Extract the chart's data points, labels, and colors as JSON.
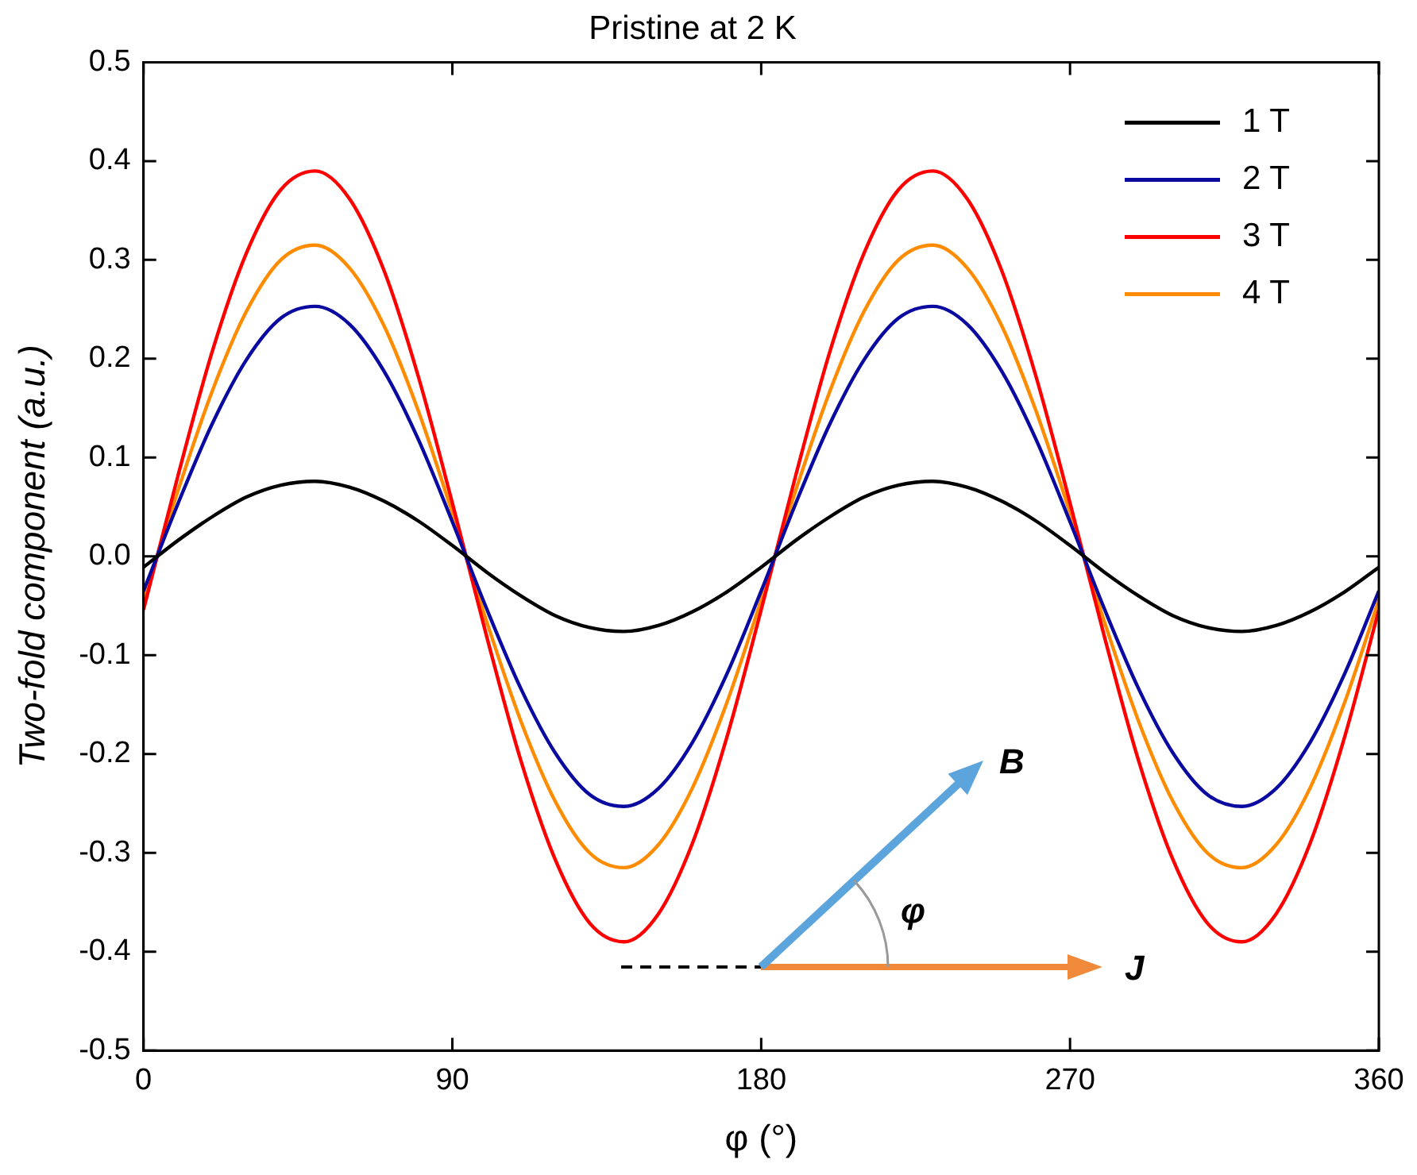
{
  "chart_data": {
    "type": "line",
    "title": "Pristine at 2 K",
    "xlabel": "φ (°)",
    "ylabel": "Two-fold component (a.u.)",
    "x": [
      0,
      10,
      20,
      30,
      40,
      50,
      60,
      70,
      80,
      90,
      100,
      110,
      120,
      130,
      140,
      150,
      160,
      170,
      180,
      190,
      200,
      210,
      220,
      230,
      240,
      250,
      260,
      270,
      280,
      290,
      300,
      310,
      320,
      330,
      340,
      350,
      360
    ],
    "series": [
      {
        "name": "1 T",
        "color": "#000000",
        "values": [
          -0.011,
          0.016,
          0.04,
          0.06,
          0.072,
          0.076,
          0.07,
          0.056,
          0.036,
          0.011,
          -0.016,
          -0.04,
          -0.06,
          -0.072,
          -0.076,
          -0.07,
          -0.056,
          -0.036,
          -0.011,
          0.016,
          0.04,
          0.06,
          0.072,
          0.076,
          0.07,
          0.056,
          0.036,
          0.011,
          -0.016,
          -0.04,
          -0.06,
          -0.072,
          -0.076,
          -0.07,
          -0.056,
          -0.036,
          -0.011
        ]
      },
      {
        "name": "2 T",
        "color": "#0a0aa0",
        "values": [
          -0.035,
          0.053,
          0.134,
          0.199,
          0.241,
          0.253,
          0.235,
          0.188,
          0.119,
          0.035,
          -0.053,
          -0.134,
          -0.199,
          -0.241,
          -0.253,
          -0.235,
          -0.188,
          -0.119,
          -0.035,
          0.053,
          0.134,
          0.199,
          0.241,
          0.253,
          0.235,
          0.188,
          0.119,
          0.035,
          -0.053,
          -0.134,
          -0.199,
          -0.241,
          -0.253,
          -0.235,
          -0.188,
          -0.119,
          -0.035
        ]
      },
      {
        "name": "3 T",
        "color": "#ff0000",
        "values": [
          -0.054,
          0.081,
          0.207,
          0.307,
          0.371,
          0.39,
          0.362,
          0.29,
          0.183,
          0.054,
          -0.081,
          -0.207,
          -0.307,
          -0.371,
          -0.39,
          -0.362,
          -0.29,
          -0.183,
          -0.054,
          0.081,
          0.207,
          0.307,
          0.371,
          0.39,
          0.362,
          0.29,
          0.183,
          0.054,
          -0.081,
          -0.207,
          -0.307,
          -0.371,
          -0.39,
          -0.362,
          -0.29,
          -0.183,
          -0.054
        ]
      },
      {
        "name": "4 T",
        "color": "#ff8c00",
        "values": [
          -0.044,
          0.066,
          0.167,
          0.248,
          0.3,
          0.315,
          0.292,
          0.234,
          0.148,
          0.044,
          -0.066,
          -0.167,
          -0.248,
          -0.3,
          -0.315,
          -0.292,
          -0.234,
          -0.148,
          -0.044,
          0.066,
          0.167,
          0.248,
          0.3,
          0.315,
          0.292,
          0.234,
          0.148,
          0.044,
          -0.066,
          -0.167,
          -0.248,
          -0.3,
          -0.315,
          -0.292,
          -0.234,
          -0.148,
          -0.044
        ]
      }
    ],
    "xlim": [
      0,
      360
    ],
    "xticks": [
      0,
      90,
      180,
      270,
      360
    ],
    "ylim": [
      -0.5,
      0.5
    ],
    "yticks": [
      -0.5,
      -0.4,
      -0.3,
      -0.2,
      -0.1,
      {
        "value": 0,
        "label": "0.0"
      },
      0.1,
      0.2,
      0.3,
      0.4,
      0.5
    ],
    "legend": "top right",
    "grid": false,
    "marker": "none",
    "line_style": "solid",
    "annotations": [
      "B",
      "J",
      "φ"
    ]
  }
}
